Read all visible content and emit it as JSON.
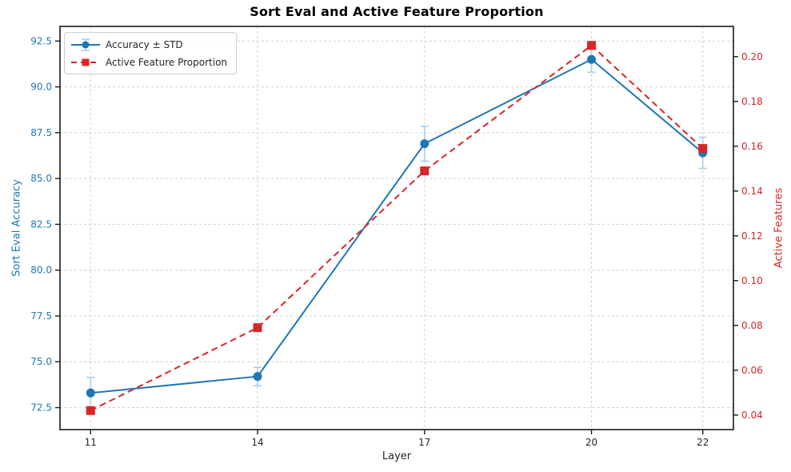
{
  "chart_data": {
    "type": "line",
    "title": "Sort Eval and Active Feature Proportion",
    "xlabel": "Layer",
    "x": [
      11,
      14,
      17,
      20,
      22
    ],
    "x_ticks": [
      11,
      14,
      17,
      20,
      22
    ],
    "x_range": [
      10.45,
      22.55
    ],
    "grid": true,
    "grid_color": "#cfcfcf",
    "spine_color": "#1a1a1a",
    "legend_position": "upper-left",
    "left_axis": {
      "label": "Sort Eval Accuracy",
      "color": "#1f77b4",
      "ticks": [
        72.5,
        75.0,
        77.5,
        80.0,
        82.5,
        85.0,
        87.5,
        90.0,
        92.5
      ],
      "tick_decimals": 1,
      "range": [
        71.3,
        93.3
      ]
    },
    "right_axis": {
      "label": "Active Features",
      "color": "#d62728",
      "ticks": [
        0.04,
        0.06,
        0.08,
        0.1,
        0.12,
        0.14,
        0.16,
        0.18,
        0.2
      ],
      "tick_decimals": 2,
      "range": [
        0.0335,
        0.2135
      ]
    },
    "series": [
      {
        "name": "Accuracy ± STD",
        "axis": "left",
        "color": "#1f77b4",
        "line_style": "solid",
        "marker": "circle",
        "values": [
          73.3,
          74.2,
          86.9,
          91.5,
          86.4
        ],
        "std": [
          0.85,
          0.5,
          0.95,
          0.7,
          0.85
        ],
        "error_color": "#aed3ea"
      },
      {
        "name": "Active Feature Proportion",
        "axis": "right",
        "color": "#d62728",
        "line_style": "dashed",
        "marker": "square",
        "values": [
          0.042,
          0.079,
          0.149,
          0.205,
          0.159
        ]
      }
    ]
  }
}
